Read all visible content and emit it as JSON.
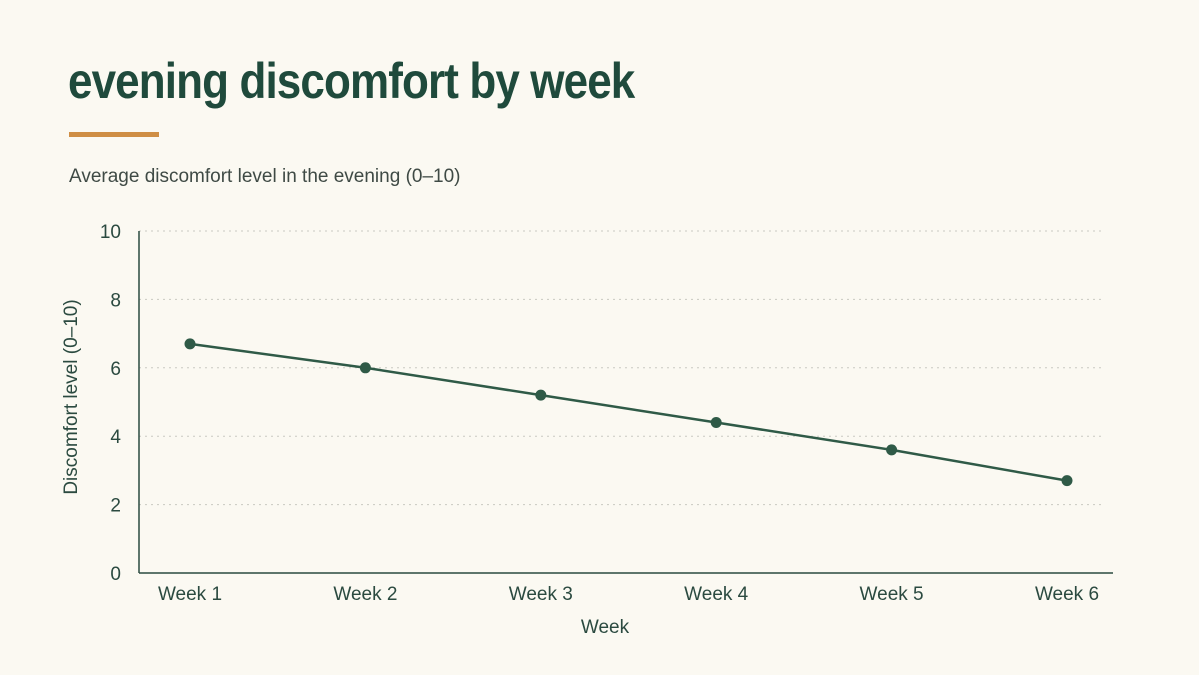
{
  "header": {
    "title": "evening discomfort by week",
    "subtitle": "Average discomfort level in the evening (0–10)"
  },
  "colors": {
    "background": "#fbf9f2",
    "title": "#1f4a3c",
    "accent_rule": "#cf8e45",
    "series": "#2f5a47",
    "axis": "#2b4a40",
    "grid": "#c9c9c1"
  },
  "chart_data": {
    "type": "line",
    "categories": [
      "Week 1",
      "Week 2",
      "Week 3",
      "Week 4",
      "Week 5",
      "Week 6"
    ],
    "series": [
      {
        "values": [
          6.7,
          6.0,
          5.2,
          4.4,
          3.6,
          2.7
        ]
      }
    ],
    "xlabel": "Week",
    "ylabel": "Discomfort level (0–10)",
    "ylim": [
      0,
      10
    ],
    "yticks": [
      0,
      2,
      4,
      6,
      8,
      10
    ],
    "grid": true,
    "grid_style": "dotted-horizontal",
    "markers": true
  }
}
